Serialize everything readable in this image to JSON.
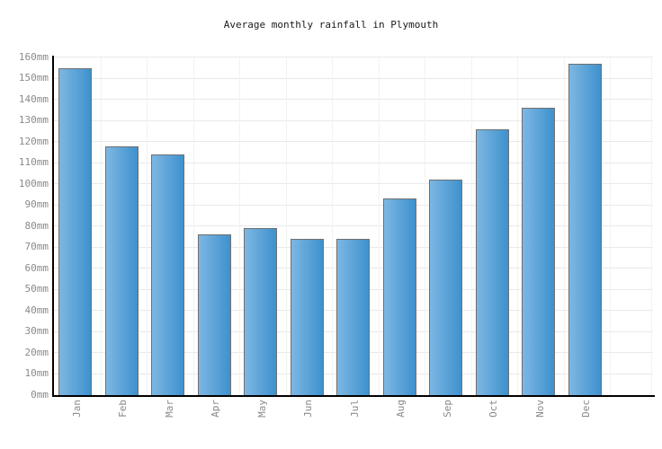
{
  "title": "Average monthly rainfall in Plymouth",
  "chart_data": {
    "type": "bar",
    "title": "Average monthly rainfall in Plymouth",
    "categories": [
      "Jan",
      "Feb",
      "Mar",
      "Apr",
      "May",
      "Jun",
      "Jul",
      "Aug",
      "Sep",
      "Oct",
      "Nov",
      "Dec"
    ],
    "values": [
      155,
      118,
      114,
      76,
      79,
      74,
      74,
      93,
      102,
      126,
      136,
      157
    ],
    "unit": "mm",
    "xlabel": "",
    "ylabel": "",
    "ylim": [
      0,
      160
    ],
    "ytick_step": 10,
    "ytick_labels": [
      "0mm",
      "10mm",
      "20mm",
      "30mm",
      "40mm",
      "50mm",
      "60mm",
      "70mm",
      "80mm",
      "90mm",
      "100mm",
      "110mm",
      "120mm",
      "130mm",
      "140mm",
      "150mm",
      "160mm"
    ],
    "grid": "on",
    "legend": "none"
  },
  "colors": {
    "background": "#ffffff",
    "bar_gradient_start": "#7db7e3",
    "bar_gradient_end": "#3e91cd",
    "bar_border": "#6f6f6f",
    "hgrid": "#e9e9e9",
    "vgrid": "#f2f2f2",
    "axis": "#000000",
    "tick_label": "#8a8a8a",
    "title_text": "#1a1a1a"
  }
}
